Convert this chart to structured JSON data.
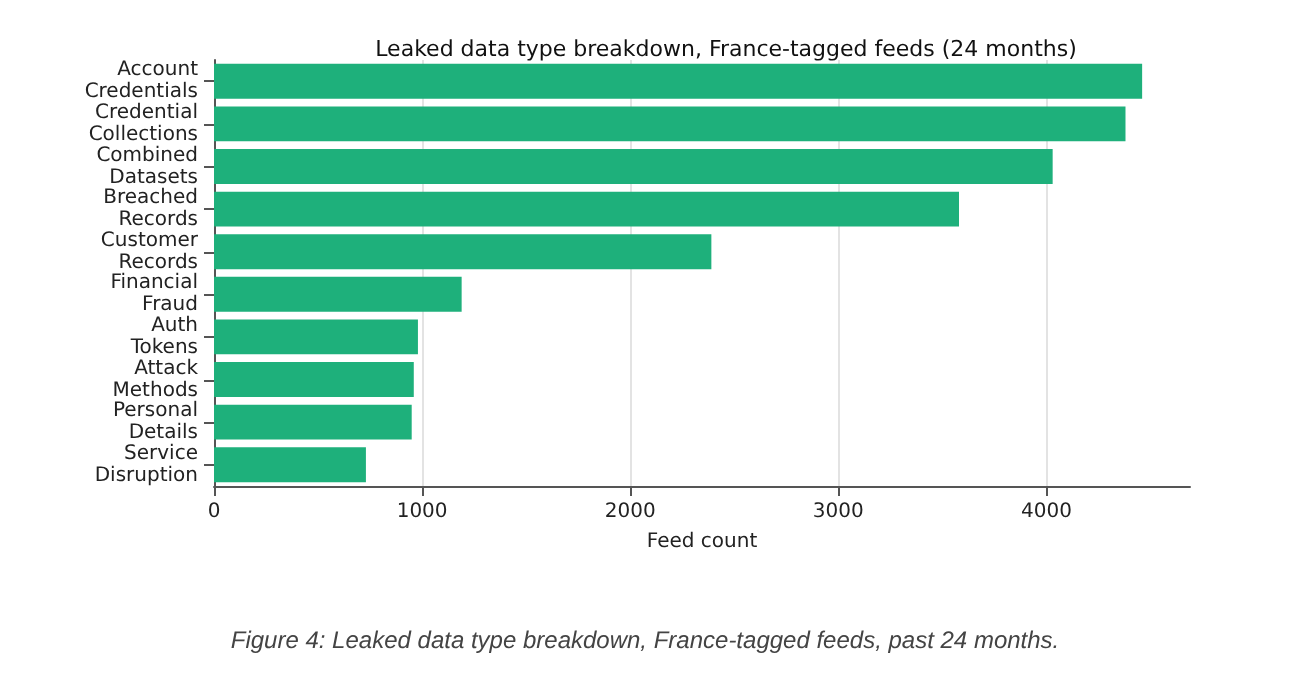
{
  "chart_data": {
    "type": "bar",
    "orientation": "horizontal",
    "title": "Leaked data type breakdown, France-tagged feeds (24 months)",
    "xlabel": "Feed count",
    "categories": [
      "Account\nCredentials",
      "Credential\nCollections",
      "Combined\nDatasets",
      "Breached\nRecords",
      "Customer\nRecords",
      "Financial\nFraud",
      "Auth\nTokens",
      "Attack\nMethods",
      "Personal\nDetails",
      "Service\nDisruption"
    ],
    "values": [
      4460,
      4380,
      4030,
      3580,
      2390,
      1190,
      980,
      960,
      950,
      730
    ],
    "color": "#1eb07b",
    "xlim": [
      0,
      4690
    ],
    "xticks": [
      0,
      1000,
      2000,
      3000,
      4000
    ],
    "grid": "x",
    "annotations": [
      "Figure 4: Leaked data type breakdown, France-tagged feeds, past 24 months."
    ]
  }
}
